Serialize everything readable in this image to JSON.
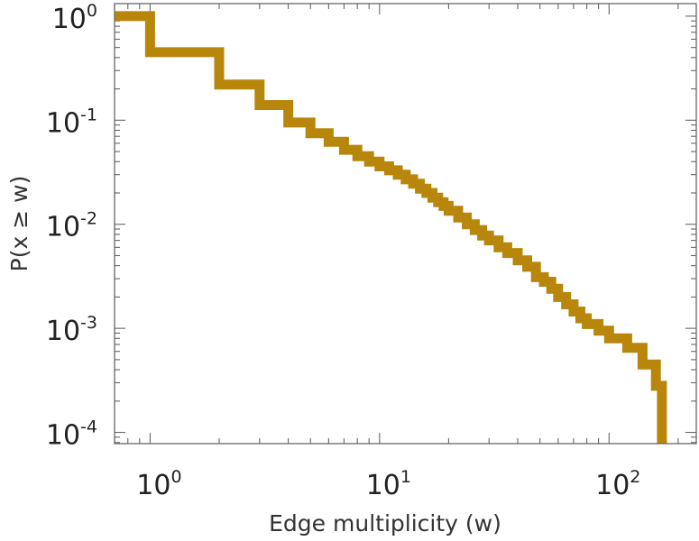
{
  "chart_data": {
    "type": "line",
    "style": "step",
    "xlabel": "Edge multiplicity (w)",
    "ylabel": "P(x ≥ w)",
    "xscale": "log",
    "yscale": "log",
    "xlim": [
      0.7,
      240
    ],
    "ylim": [
      7.8e-05,
      1.32
    ],
    "grid": false,
    "series_color": "#b8860b",
    "x_ticks": [
      {
        "base": "10",
        "exp": "0",
        "value": 1
      },
      {
        "base": "10",
        "exp": "1",
        "value": 10
      },
      {
        "base": "10",
        "exp": "2",
        "value": 100
      }
    ],
    "y_ticks": [
      {
        "base": "10",
        "exp": "0",
        "value": 1
      },
      {
        "base": "10",
        "exp": "-1",
        "value": 0.1
      },
      {
        "base": "10",
        "exp": "-2",
        "value": 0.01
      },
      {
        "base": "10",
        "exp": "-3",
        "value": 0.001
      },
      {
        "base": "10",
        "exp": "-4",
        "value": 0.0001
      }
    ],
    "series": [
      {
        "x": [
          0.7,
          1,
          2,
          3,
          4,
          5,
          6,
          7,
          8,
          9,
          10,
          11,
          12,
          13,
          14,
          15,
          16,
          17,
          18,
          19,
          20,
          22,
          24,
          26,
          28,
          30,
          33,
          36,
          40,
          44,
          48,
          52,
          56,
          60,
          65,
          70,
          75,
          80,
          90,
          100,
          120,
          140,
          160,
          170
        ],
        "y": [
          1.0,
          0.45,
          0.22,
          0.14,
          0.095,
          0.075,
          0.062,
          0.052,
          0.045,
          0.04,
          0.036,
          0.033,
          0.03,
          0.027,
          0.0245,
          0.022,
          0.02,
          0.018,
          0.0163,
          0.015,
          0.0135,
          0.0116,
          0.01,
          0.0088,
          0.0078,
          0.007,
          0.006,
          0.0053,
          0.0045,
          0.0039,
          0.0031,
          0.0028,
          0.0024,
          0.002,
          0.0017,
          0.00145,
          0.00125,
          0.0011,
          0.00095,
          0.0008,
          0.00065,
          0.00045,
          0.00028,
          7.8e-05
        ]
      }
    ]
  }
}
